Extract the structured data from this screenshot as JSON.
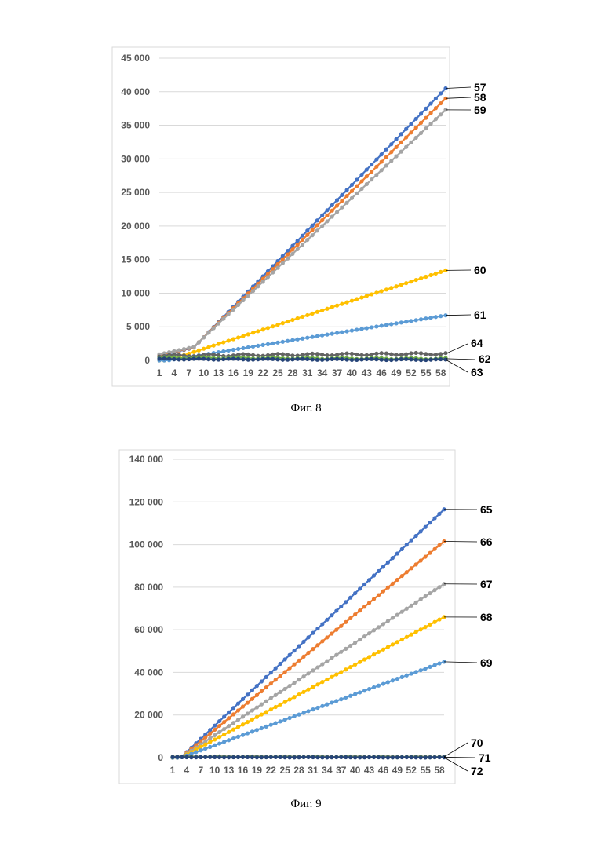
{
  "captions": {
    "fig8": "Фиг. 8",
    "fig9": "Фиг. 9"
  },
  "chart_data": [
    {
      "type": "line",
      "title": "",
      "xlabel": "",
      "ylabel": "",
      "x_tick_labels": [
        "1",
        "4",
        "7",
        "10",
        "13",
        "16",
        "19",
        "22",
        "25",
        "28",
        "31",
        "34",
        "37",
        "40",
        "43",
        "46",
        "49",
        "52",
        "55",
        "58"
      ],
      "y_tick_labels": [
        "0",
        "5 000",
        "10 000",
        "15 000",
        "20 000",
        "25 000",
        "30 000",
        "35 000",
        "40 000",
        "45 000"
      ],
      "xlim": [
        1,
        59
      ],
      "ylim": [
        0,
        45000
      ],
      "grid": true,
      "legend": "none",
      "series": [
        {
          "name": "57",
          "color": "#4472C4",
          "start": 700,
          "end": 40500,
          "shape": "s-curve"
        },
        {
          "name": "58",
          "color": "#ED7D31",
          "start": 800,
          "end": 39000,
          "shape": "s-curve"
        },
        {
          "name": "59",
          "color": "#A5A5A5",
          "start": 900,
          "end": 37300,
          "shape": "s-curve"
        },
        {
          "name": "60",
          "color": "#FFC000",
          "start": 0,
          "end": 13400,
          "shape": "ramp"
        },
        {
          "name": "61",
          "color": "#5B9BD5",
          "start": 0,
          "end": 6700,
          "shape": "ramp"
        },
        {
          "name": "64",
          "color": "#636363",
          "start": 700,
          "end": 1000,
          "shape": "flat"
        },
        {
          "name": "62",
          "color": "#70AD47",
          "start": 400,
          "end": 250,
          "shape": "flat"
        },
        {
          "name": "63",
          "color": "#264478",
          "start": 200,
          "end": 100,
          "shape": "flat"
        }
      ]
    },
    {
      "type": "line",
      "title": "",
      "xlabel": "",
      "ylabel": "",
      "x_tick_labels": [
        "1",
        "4",
        "7",
        "10",
        "13",
        "16",
        "19",
        "22",
        "25",
        "28",
        "31",
        "34",
        "37",
        "40",
        "43",
        "46",
        "49",
        "52",
        "55",
        "58"
      ],
      "y_tick_labels": [
        "0",
        "20 000",
        "40 000",
        "60 000",
        "80 000",
        "100 000",
        "120 000",
        "140 000"
      ],
      "xlim": [
        1,
        59
      ],
      "ylim": [
        0,
        140000
      ],
      "grid": true,
      "legend": "none",
      "series": [
        {
          "name": "65",
          "color": "#4472C4",
          "start": 0,
          "end": 116500,
          "shape": "ramp"
        },
        {
          "name": "66",
          "color": "#ED7D31",
          "start": 0,
          "end": 101500,
          "shape": "ramp"
        },
        {
          "name": "67",
          "color": "#A5A5A5",
          "start": 0,
          "end": 81500,
          "shape": "ramp"
        },
        {
          "name": "68",
          "color": "#FFC000",
          "start": 0,
          "end": 66000,
          "shape": "ramp"
        },
        {
          "name": "69",
          "color": "#5B9BD5",
          "start": 0,
          "end": 45000,
          "shape": "ramp"
        },
        {
          "name": "70",
          "color": "#636363",
          "start": 500,
          "end": 400,
          "shape": "flat"
        },
        {
          "name": "71",
          "color": "#70AD47",
          "start": 300,
          "end": 200,
          "shape": "flat"
        },
        {
          "name": "72",
          "color": "#264478",
          "start": 200,
          "end": 100,
          "shape": "flat"
        }
      ]
    }
  ]
}
